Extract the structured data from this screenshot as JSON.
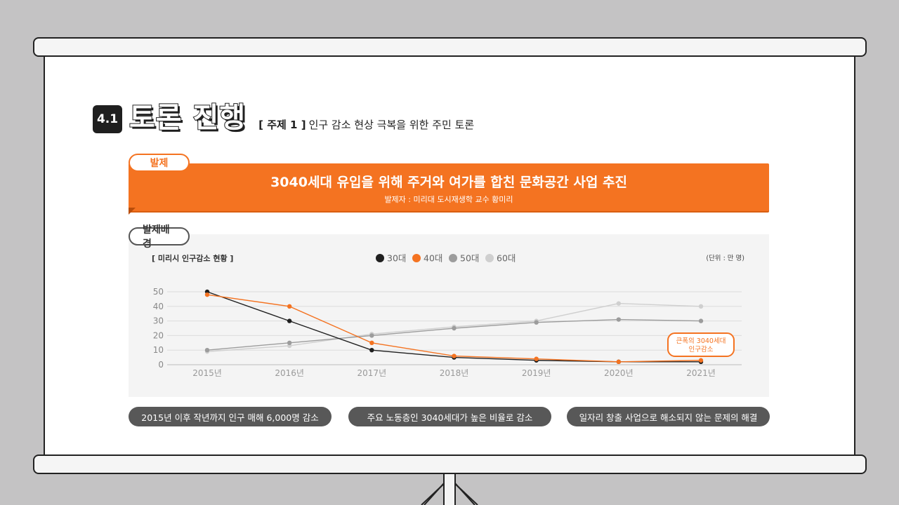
{
  "section": {
    "number": "4.1",
    "title": "토론 진행",
    "subtitle_tag": "[ 주제 1 ]",
    "subtitle": "인구 감소 현상 극복을 위한 주민 토론"
  },
  "presentation": {
    "tab_label": "발제",
    "headline": "3040세대 유입을 위해 주거와 여가를 합친 문화공간 사업 추진",
    "presenter": "발제자 : 미리대 도시재생학 교수 황미리"
  },
  "background": {
    "tab_label": "발제배경"
  },
  "chart_data": {
    "type": "line",
    "title": "[ 미리시 인구감소 현황 ]",
    "unit": "(단위 : 만 명)",
    "categories": [
      "2015년",
      "2016년",
      "2017년",
      "2018년",
      "2019년",
      "2020년",
      "2021년"
    ],
    "ylim": [
      0,
      50
    ],
    "yticks": [
      0,
      10,
      20,
      30,
      40,
      50
    ],
    "grid": true,
    "legend_position": "top-center",
    "series": [
      {
        "name": "30대",
        "color": "#1f1f1f",
        "values": [
          50,
          30,
          10,
          5,
          3,
          2,
          2
        ]
      },
      {
        "name": "40대",
        "color": "#f47321",
        "values": [
          48,
          40,
          15,
          6,
          4,
          2,
          3
        ]
      },
      {
        "name": "50대",
        "color": "#9c9c9c",
        "values": [
          10,
          15,
          20,
          25,
          29,
          31,
          30
        ]
      },
      {
        "name": "60대",
        "color": "#cfcfcf",
        "values": [
          9,
          13,
          21,
          26,
          30,
          42,
          40
        ]
      }
    ],
    "annotation": {
      "lines": [
        "큰폭의 3040세대",
        "인구감소"
      ],
      "color": "#f47321"
    }
  },
  "summary_pills": [
    "2015년 이후 작년까지 인구 매해 6,000명 감소",
    "주요 노동층인 3040세대가 높은 비율로 감소",
    "일자리 창출 사업으로 해소되지 않는 문제의 해결"
  ]
}
